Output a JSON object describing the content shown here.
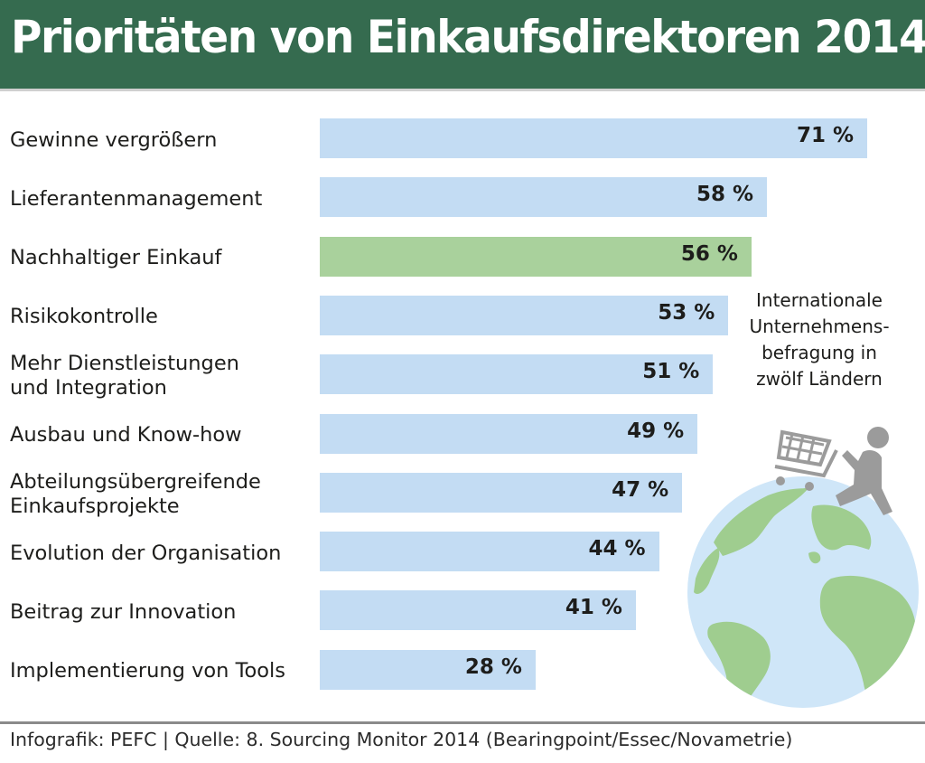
{
  "header": {
    "title": "Prioritäten von Einkaufsdirektoren 2014"
  },
  "colors": {
    "header_bg": "#356b4f",
    "bar_default": "#c3dcf3",
    "bar_highlight": "#a9d19c",
    "globe_ocean": "#cfe6f8",
    "globe_land": "#9fcd8f",
    "figure": "#9b9b9b"
  },
  "note": {
    "lines": [
      "Internationale",
      "Unternehmens-",
      "befragung in",
      "zwölf Ländern"
    ]
  },
  "footer": {
    "text": "Infografik: PEFC | Quelle: 8. Sourcing Monitor 2014 (Bearingpoint/Essec/Novametrie)"
  },
  "chart_data": {
    "type": "bar",
    "orientation": "horizontal",
    "title": "Prioritäten von Einkaufsdirektoren 2014",
    "xlabel": "",
    "ylabel": "",
    "unit": "%",
    "xlim": [
      0,
      71
    ],
    "grid": false,
    "legend": "none",
    "categories": [
      [
        "Gewinne vergrößern"
      ],
      [
        "Lieferantenmanagement"
      ],
      [
        "Nachhaltiger Einkauf"
      ],
      [
        "Risikokontrolle"
      ],
      [
        "Mehr Dienstleistungen",
        "und Integration"
      ],
      [
        "Ausbau und Know-how"
      ],
      [
        "Abteilungsübergreifende",
        "Einkaufsprojekte"
      ],
      [
        "Evolution der Organisation"
      ],
      [
        "Beitrag zur Innovation"
      ],
      [
        "Implementierung von Tools"
      ]
    ],
    "values": [
      71,
      58,
      56,
      53,
      51,
      49,
      47,
      44,
      41,
      28
    ],
    "value_labels": [
      "71 %",
      "58 %",
      "56 %",
      "53 %",
      "51 %",
      "49 %",
      "47 %",
      "44 %",
      "41 %",
      "28 %"
    ],
    "highlighted_index": 2,
    "annotation": "Internationale Unternehmensbefragung in zwölf Ländern"
  }
}
